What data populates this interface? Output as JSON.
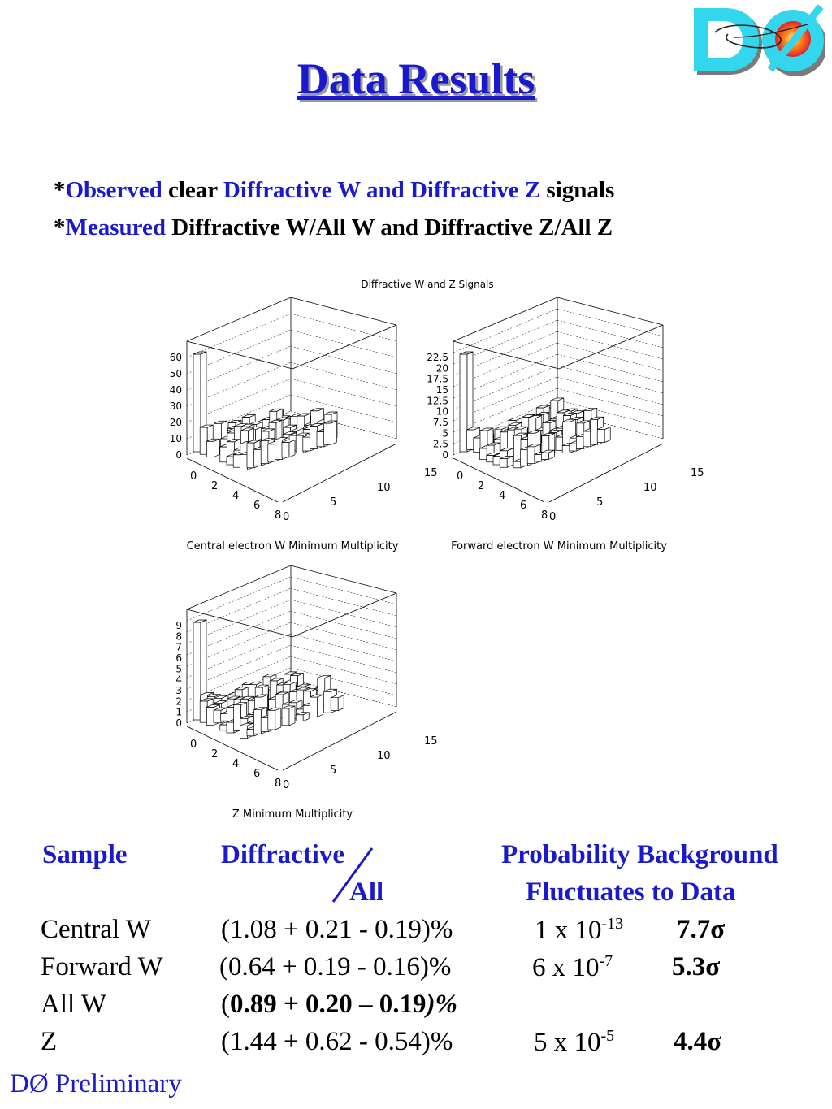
{
  "title": "Data Results",
  "bullets": [
    {
      "star": "*",
      "parts": [
        "Observed",
        " clear ",
        "Diffractive W and Diffractive Z",
        " signals"
      ]
    },
    {
      "star": "*",
      "parts": [
        "Measured",
        " Diffractive W/All W and Diffractive Z/All Z"
      ]
    }
  ],
  "figure": {
    "title": "Diffractive W and Z Signals",
    "panels": [
      {
        "caption": "Central electron W Minimum Multiplicity",
        "zticks": [
          "60",
          "50",
          "40",
          "30",
          "20",
          "10",
          "0"
        ],
        "left_ticks": [
          "0",
          "2",
          "4",
          "6",
          "8"
        ],
        "right_ticks": [
          "0",
          "5",
          "10",
          "15"
        ]
      },
      {
        "caption": "Forward electron W Minimum Multiplicity",
        "zticks": [
          "22.5",
          "20",
          "17.5",
          "15",
          "12.5",
          "10",
          "7.5",
          "5",
          "2.5",
          "0"
        ],
        "left_ticks": [
          "0",
          "2",
          "4",
          "6",
          "8"
        ],
        "right_ticks": [
          "0",
          "5",
          "10",
          "15"
        ]
      },
      {
        "caption": "Z Minimum Multiplicity",
        "zticks": [
          "9",
          "8",
          "7",
          "6",
          "5",
          "4",
          "3",
          "2",
          "1",
          "0"
        ],
        "left_ticks": [
          "0",
          "2",
          "4",
          "6",
          "8"
        ],
        "right_ticks": [
          "0",
          "5",
          "10",
          "15"
        ]
      }
    ]
  },
  "table": {
    "headers": {
      "sample": "Sample",
      "diff": "Diffractive",
      "all": "All",
      "prob1": "Probability Background",
      "prob2": "Fluctuates to Data"
    },
    "rows": [
      {
        "sample": "Central W",
        "ratio": "(1.08 + 0.21 - 0.19)%",
        "prob": "1 x 10",
        "exp": "-13",
        "sig": "7.7σ"
      },
      {
        "sample": "Forward W",
        "ratio": "(0.64 + 0.19 - 0.16)%",
        "prob": "6 x 10",
        "exp": "-7",
        "sig": "5.3σ"
      },
      {
        "sample": "All W",
        "ratio_open": "(",
        "ratio_bold": "0.89 + 0.20 – 0.19",
        "ratio_close": ")%"
      },
      {
        "sample": "Z",
        "ratio": "(1.44 + 0.62 - 0.54)%",
        "prob": "5 x 10",
        "exp": "-5",
        "sig": "4.4σ"
      }
    ]
  },
  "logo": {
    "text": "DØ"
  },
  "footer": "DØ Preliminary"
}
